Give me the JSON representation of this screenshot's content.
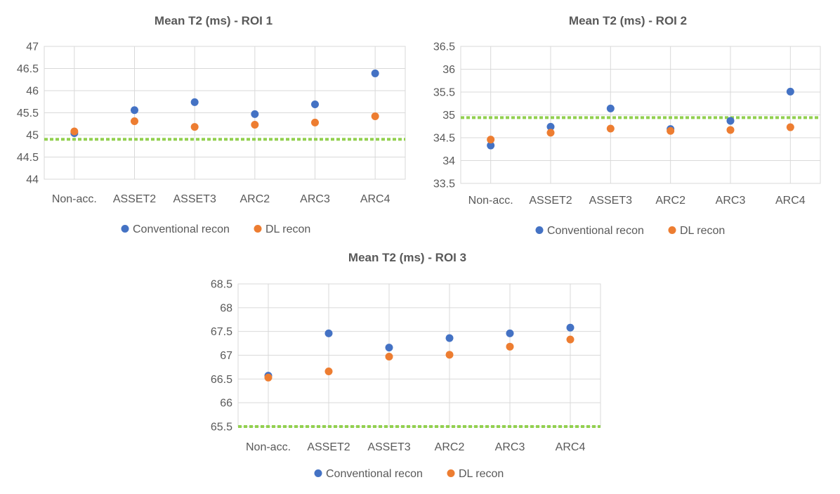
{
  "series_names": [
    "Conventional recon",
    "DL recon"
  ],
  "colors": {
    "conventional": "#4472c4",
    "dl": "#ed7d31",
    "reference_line": "#92d050",
    "grid": "#d9d9d9",
    "text": "#595959"
  },
  "chart_data": [
    {
      "type": "scatter",
      "title": "Mean T2 (ms) - ROI 1",
      "categories": [
        "Non-acc.",
        "ASSET2",
        "ASSET3",
        "ARC2",
        "ARC3",
        "ARC4"
      ],
      "yticks": [
        "44",
        "44.5",
        "45",
        "45.5",
        "46",
        "46.5",
        "47"
      ],
      "ylim": [
        44,
        47
      ],
      "grid": "both",
      "legend": "bottom",
      "reference_line": 44.9,
      "series": [
        {
          "name": "Conventional recon",
          "values": [
            45.04,
            45.56,
            45.74,
            45.47,
            45.69,
            46.39
          ]
        },
        {
          "name": "DL recon",
          "values": [
            45.08,
            45.31,
            45.18,
            45.23,
            45.28,
            45.42
          ]
        }
      ]
    },
    {
      "type": "scatter",
      "title": "Mean T2 (ms) - ROI 2",
      "categories": [
        "Non-acc.",
        "ASSET2",
        "ASSET3",
        "ARC2",
        "ARC3",
        "ARC4"
      ],
      "yticks": [
        "33.5",
        "34",
        "34.5",
        "35",
        "35.5",
        "36",
        "36.5"
      ],
      "ylim": [
        33.5,
        36.5
      ],
      "grid": "both",
      "legend": "bottom",
      "reference_line": 34.94,
      "series": [
        {
          "name": "Conventional recon",
          "values": [
            34.33,
            34.74,
            35.14,
            34.69,
            34.87,
            35.51
          ]
        },
        {
          "name": "DL recon",
          "values": [
            34.46,
            34.61,
            34.7,
            34.65,
            34.67,
            34.73
          ]
        }
      ]
    },
    {
      "type": "scatter",
      "title": "Mean T2 (ms)  - ROI 3",
      "categories": [
        "Non-acc.",
        "ASSET2",
        "ASSET3",
        "ARC2",
        "ARC3",
        "ARC4"
      ],
      "yticks": [
        "65.5",
        "66",
        "66.5",
        "67",
        "67.5",
        "68",
        "68.5"
      ],
      "ylim": [
        65.5,
        68.5
      ],
      "grid": "both",
      "legend": "bottom",
      "reference_line": 65.5,
      "series": [
        {
          "name": "Conventional recon",
          "values": [
            66.57,
            67.46,
            67.16,
            67.36,
            67.46,
            67.58
          ]
        },
        {
          "name": "DL recon",
          "values": [
            66.53,
            66.66,
            66.97,
            67.01,
            67.18,
            67.33
          ]
        }
      ]
    }
  ]
}
